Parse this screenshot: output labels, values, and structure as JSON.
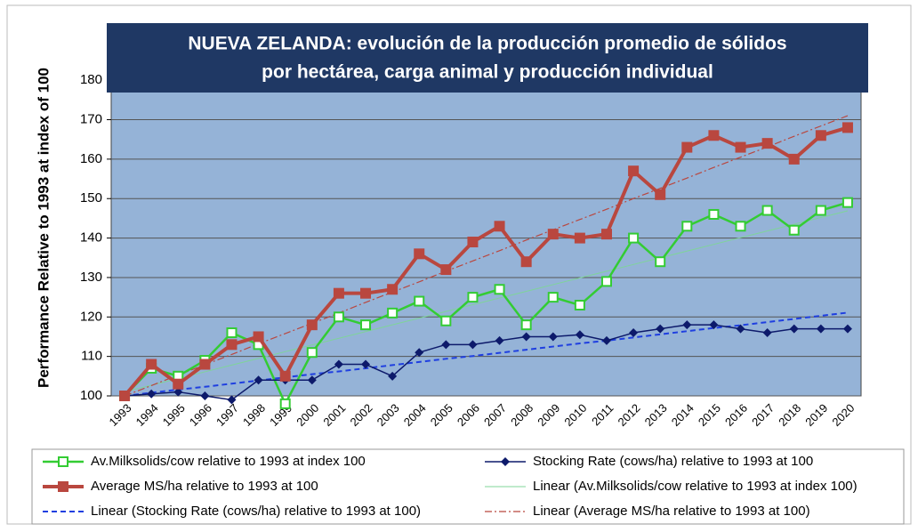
{
  "chart_data": {
    "type": "line",
    "title": [
      "NUEVA ZELANDA: evolución de la producción promedio de sólidos",
      "por hectárea, carga animal y producción individual"
    ],
    "y_label": "Performance Relative to 1993 at index of 100",
    "categories": [
      "1993",
      "1994",
      "1995",
      "1996",
      "1997",
      "1998",
      "1999",
      "2000",
      "2001",
      "2002",
      "2003",
      "2004",
      "2005",
      "2006",
      "2007",
      "2008",
      "2009",
      "2010",
      "2011",
      "2012",
      "2013",
      "2014",
      "2015",
      "2016",
      "2017",
      "2018",
      "2019",
      "2020"
    ],
    "ylim": [
      100,
      185
    ],
    "yticks": [
      100,
      110,
      120,
      130,
      140,
      150,
      160,
      170,
      180
    ],
    "grid": true,
    "legend": "bottom",
    "background": "#95b3d7",
    "series": [
      {
        "name": "Av.Milksolids/cow relative to 1993 at index 100",
        "color": "#33cc33",
        "marker": "square-open",
        "width": 2.5,
        "values": [
          100,
          107,
          105,
          109,
          116,
          113,
          98,
          111,
          120,
          118,
          121,
          124,
          119,
          125,
          127,
          118,
          125,
          123,
          129,
          140,
          134,
          143,
          146,
          143,
          147,
          142,
          147,
          149
        ]
      },
      {
        "name": "Stocking Rate (cows/ha) relative to 1993 at 100",
        "color": "#0d1a6b",
        "marker": "diamond",
        "width": 1.5,
        "values": [
          100,
          100.5,
          101,
          100,
          99,
          104,
          104,
          104,
          108,
          108,
          105,
          111,
          113,
          113,
          114,
          115,
          115,
          115.5,
          114,
          116,
          117,
          118,
          118,
          117,
          116,
          117,
          117,
          117
        ]
      },
      {
        "name": "Average MS/ha relative to 1993 at 100",
        "color": "#b9473f",
        "marker": "square",
        "width": 4,
        "values": [
          100,
          108,
          103,
          108,
          113,
          115,
          105,
          118,
          126,
          126,
          127,
          136,
          132,
          139,
          143,
          134,
          141,
          140,
          141,
          157,
          151,
          163,
          166,
          163,
          164,
          160,
          166,
          168
        ]
      },
      {
        "name": "Linear (Av.Milksolids/cow relative to 1993 at index 100)",
        "color": "#7fd49a",
        "marker": "none",
        "width": 1,
        "values": [
          101,
          102.7,
          104.4,
          106.1,
          107.8,
          109.5,
          111.2,
          112.9,
          114.6,
          116.3,
          118,
          119.7,
          121.4,
          123.1,
          124.8,
          126.5,
          128.2,
          129.9,
          131.6,
          133.3,
          135,
          136.7,
          138.4,
          140.1,
          141.8,
          143.5,
          145.2,
          146.9
        ]
      },
      {
        "name": "Linear (Stocking Rate (cows/ha) relative to 1993 at 100)",
        "color": "#1f3fe0",
        "marker": "none",
        "width": 2,
        "dash": "6,4",
        "values": [
          100,
          100.8,
          101.6,
          102.3,
          103.1,
          103.9,
          104.7,
          105.5,
          106.2,
          107,
          107.8,
          108.6,
          109.4,
          110.1,
          110.9,
          111.7,
          112.5,
          113.3,
          114,
          114.8,
          115.6,
          116.4,
          117.2,
          117.9,
          118.7,
          119.5,
          120.3,
          121.1
        ]
      },
      {
        "name": "Linear (Average MS/ha relative to 1993 at 100)",
        "color": "#b9473f",
        "marker": "none",
        "width": 1.2,
        "dash": "8,3,2,3",
        "values": [
          100,
          102.6,
          105.3,
          107.9,
          110.5,
          113.2,
          115.8,
          118.4,
          121,
          123.7,
          126.3,
          128.9,
          131.6,
          134.2,
          136.8,
          139.5,
          142.1,
          144.7,
          147.3,
          150,
          152.6,
          155.2,
          157.9,
          160.5,
          163.1,
          165.8,
          168.4,
          171
        ]
      }
    ]
  }
}
